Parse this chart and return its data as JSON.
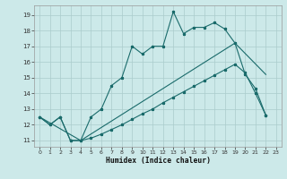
{
  "xlabel": "Humidex (Indice chaleur)",
  "bg_color": "#cce9e9",
  "grid_color": "#aacccc",
  "line_color": "#1a6b6b",
  "xlim_min": -0.5,
  "xlim_max": 23.5,
  "ylim_min": 10.6,
  "ylim_max": 19.6,
  "xtick_vals": [
    0,
    1,
    2,
    3,
    4,
    5,
    6,
    7,
    8,
    9,
    10,
    11,
    12,
    13,
    14,
    15,
    16,
    17,
    18,
    19,
    20,
    21,
    22,
    23
  ],
  "ytick_vals": [
    11,
    12,
    13,
    14,
    15,
    16,
    17,
    18,
    19
  ],
  "curve1_x": [
    0,
    1,
    2,
    3,
    4,
    5,
    6,
    7,
    8,
    9,
    10,
    11,
    12,
    13,
    14,
    15,
    16,
    17,
    18,
    19,
    20,
    21,
    22
  ],
  "curve1_y": [
    12.5,
    12.0,
    12.5,
    11.0,
    11.0,
    12.5,
    13.0,
    14.5,
    15.0,
    17.0,
    16.5,
    17.0,
    17.0,
    19.2,
    17.8,
    18.2,
    18.2,
    18.5,
    18.1,
    17.2,
    15.2,
    14.3,
    12.6
  ],
  "curve2_x": [
    0,
    1,
    2,
    3,
    4,
    5,
    6,
    7,
    8,
    9,
    10,
    11,
    12,
    13,
    14,
    15,
    16,
    17,
    18,
    19,
    20,
    21,
    22
  ],
  "curve2_y": [
    12.5,
    12.0,
    12.5,
    11.0,
    11.0,
    11.15,
    11.4,
    11.7,
    12.0,
    12.35,
    12.7,
    13.0,
    13.4,
    13.75,
    14.1,
    14.45,
    14.8,
    15.15,
    15.5,
    15.85,
    15.3,
    14.0,
    12.6
  ],
  "curve3_x": [
    0,
    4,
    19,
    22
  ],
  "curve3_y": [
    12.5,
    11.0,
    17.2,
    15.2
  ],
  "lw": 0.8,
  "ms": 2.2
}
